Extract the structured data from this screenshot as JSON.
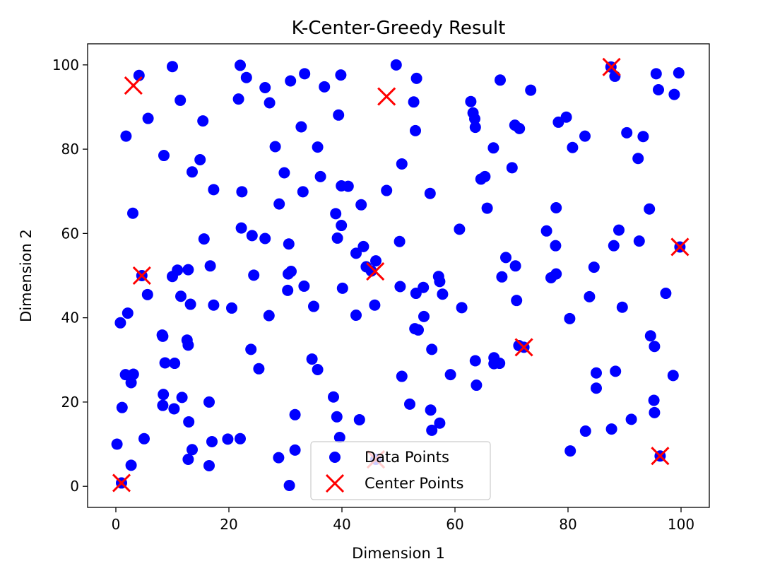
{
  "chart_data": {
    "type": "scatter",
    "title": "K-Center-Greedy Result",
    "xlabel": "Dimension 1",
    "ylabel": "Dimension 2",
    "xlim": [
      -5,
      105
    ],
    "ylim": [
      -5,
      105
    ],
    "xticks": [
      0,
      20,
      40,
      60,
      80,
      100
    ],
    "yticks": [
      0,
      20,
      40,
      60,
      80,
      100
    ],
    "xtick_labels": [
      "0",
      "20",
      "40",
      "60",
      "80",
      "100"
    ],
    "ytick_labels": [
      "0",
      "20",
      "40",
      "60",
      "80",
      "100"
    ],
    "grid": false,
    "legend_position": "bottom-center",
    "series": [
      {
        "name": "Data Points",
        "marker": "circle",
        "color": "#0000ff",
        "points": [
          [
            4.1,
            97.5
          ],
          [
            10.0,
            99.6
          ],
          [
            22.0,
            99.9
          ],
          [
            23.1,
            97.0
          ],
          [
            33.4,
            97.9
          ],
          [
            39.8,
            97.6
          ],
          [
            49.6,
            100.0
          ],
          [
            53.2,
            96.8
          ],
          [
            68.0,
            96.4
          ],
          [
            87.6,
            99.5
          ],
          [
            88.3,
            97.3
          ],
          [
            95.6,
            97.9
          ],
          [
            99.6,
            98.1
          ],
          [
            11.4,
            91.6
          ],
          [
            21.7,
            91.9
          ],
          [
            26.4,
            94.6
          ],
          [
            27.2,
            91.0
          ],
          [
            30.9,
            96.2
          ],
          [
            36.9,
            94.8
          ],
          [
            52.7,
            91.2
          ],
          [
            62.8,
            91.3
          ],
          [
            73.4,
            94.0
          ],
          [
            96.0,
            94.1
          ],
          [
            98.8,
            93.0
          ],
          [
            5.7,
            87.3
          ],
          [
            1.8,
            83.1
          ],
          [
            15.4,
            86.7
          ],
          [
            32.8,
            85.3
          ],
          [
            39.4,
            88.1
          ],
          [
            53.0,
            84.4
          ],
          [
            63.2,
            88.6
          ],
          [
            63.5,
            87.2
          ],
          [
            63.6,
            85.2
          ],
          [
            70.6,
            85.7
          ],
          [
            71.4,
            84.9
          ],
          [
            78.3,
            86.4
          ],
          [
            79.7,
            87.6
          ],
          [
            83.0,
            83.1
          ],
          [
            90.4,
            83.9
          ],
          [
            93.3,
            83.0
          ],
          [
            8.5,
            78.5
          ],
          [
            13.5,
            74.6
          ],
          [
            14.9,
            77.5
          ],
          [
            17.3,
            70.4
          ],
          [
            22.3,
            69.9
          ],
          [
            28.2,
            80.6
          ],
          [
            29.8,
            74.4
          ],
          [
            33.1,
            69.9
          ],
          [
            35.7,
            80.5
          ],
          [
            36.2,
            73.5
          ],
          [
            39.9,
            71.3
          ],
          [
            41.1,
            71.2
          ],
          [
            47.9,
            70.2
          ],
          [
            50.6,
            76.5
          ],
          [
            55.6,
            69.5
          ],
          [
            66.8,
            80.3
          ],
          [
            64.6,
            72.9
          ],
          [
            65.3,
            73.5
          ],
          [
            70.1,
            75.6
          ],
          [
            80.8,
            80.4
          ],
          [
            92.4,
            77.8
          ],
          [
            3.0,
            64.8
          ],
          [
            15.6,
            58.7
          ],
          [
            22.2,
            61.3
          ],
          [
            24.1,
            59.5
          ],
          [
            26.4,
            58.8
          ],
          [
            28.9,
            67.0
          ],
          [
            38.9,
            64.7
          ],
          [
            39.2,
            58.9
          ],
          [
            39.9,
            61.9
          ],
          [
            42.5,
            55.3
          ],
          [
            43.4,
            66.8
          ],
          [
            43.8,
            56.9
          ],
          [
            50.2,
            58.1
          ],
          [
            60.8,
            61.0
          ],
          [
            65.7,
            66.0
          ],
          [
            76.2,
            60.6
          ],
          [
            77.9,
            66.1
          ],
          [
            77.8,
            57.1
          ],
          [
            88.1,
            57.1
          ],
          [
            89.0,
            60.8
          ],
          [
            92.6,
            58.2
          ],
          [
            94.4,
            65.8
          ],
          [
            99.8,
            56.8
          ],
          [
            4.6,
            50.0
          ],
          [
            5.6,
            45.5
          ],
          [
            10.0,
            49.8
          ],
          [
            10.9,
            51.3
          ],
          [
            11.5,
            45.1
          ],
          [
            12.8,
            51.4
          ],
          [
            13.2,
            43.2
          ],
          [
            16.7,
            52.3
          ],
          [
            17.3,
            43.0
          ],
          [
            20.5,
            42.3
          ],
          [
            24.4,
            50.1
          ],
          [
            30.6,
            57.5
          ],
          [
            30.5,
            50.4
          ],
          [
            31.0,
            51.0
          ],
          [
            30.4,
            46.5
          ],
          [
            33.3,
            47.5
          ],
          [
            35.0,
            42.7
          ],
          [
            40.1,
            47.0
          ],
          [
            44.3,
            52.1
          ],
          [
            45.2,
            51.1
          ],
          [
            46.0,
            53.5
          ],
          [
            45.8,
            43.0
          ],
          [
            50.3,
            47.4
          ],
          [
            53.1,
            45.8
          ],
          [
            54.4,
            47.2
          ],
          [
            57.1,
            49.8
          ],
          [
            57.3,
            48.6
          ],
          [
            57.8,
            45.6
          ],
          [
            61.2,
            42.4
          ],
          [
            69.0,
            54.3
          ],
          [
            70.7,
            52.3
          ],
          [
            68.3,
            49.7
          ],
          [
            70.9,
            44.1
          ],
          [
            77.0,
            49.5
          ],
          [
            77.9,
            50.4
          ],
          [
            84.6,
            52.0
          ],
          [
            83.8,
            45.0
          ],
          [
            89.6,
            42.5
          ],
          [
            97.3,
            45.8
          ],
          [
            0.8,
            38.8
          ],
          [
            2.1,
            41.1
          ],
          [
            8.2,
            35.9
          ],
          [
            8.3,
            35.6
          ],
          [
            12.6,
            34.7
          ],
          [
            12.8,
            33.5
          ],
          [
            27.1,
            40.5
          ],
          [
            23.9,
            32.5
          ],
          [
            42.5,
            40.6
          ],
          [
            52.9,
            37.4
          ],
          [
            53.5,
            37.1
          ],
          [
            54.5,
            40.3
          ],
          [
            55.9,
            32.5
          ],
          [
            72.2,
            33.0
          ],
          [
            71.3,
            33.4
          ],
          [
            80.3,
            39.8
          ],
          [
            95.3,
            33.2
          ],
          [
            94.6,
            35.7
          ],
          [
            1.7,
            26.5
          ],
          [
            2.7,
            24.6
          ],
          [
            3.1,
            26.6
          ],
          [
            8.7,
            29.3
          ],
          [
            10.4,
            29.2
          ],
          [
            8.4,
            21.8
          ],
          [
            8.3,
            19.2
          ],
          [
            11.7,
            21.1
          ],
          [
            10.3,
            18.4
          ],
          [
            16.5,
            20.0
          ],
          [
            25.3,
            27.9
          ],
          [
            34.7,
            30.2
          ],
          [
            35.7,
            27.7
          ],
          [
            38.5,
            21.2
          ],
          [
            39.1,
            16.5
          ],
          [
            50.6,
            26.1
          ],
          [
            52.0,
            19.5
          ],
          [
            55.7,
            18.1
          ],
          [
            59.2,
            26.5
          ],
          [
            63.6,
            29.8
          ],
          [
            66.9,
            30.5
          ],
          [
            66.9,
            29.1
          ],
          [
            67.9,
            29.2
          ],
          [
            63.8,
            24.0
          ],
          [
            85.0,
            26.9
          ],
          [
            85.0,
            23.3
          ],
          [
            88.4,
            27.3
          ],
          [
            98.6,
            26.3
          ],
          [
            95.2,
            20.4
          ],
          [
            95.3,
            17.5
          ],
          [
            0.2,
            10.0
          ],
          [
            1.1,
            18.7
          ],
          [
            2.7,
            5.0
          ],
          [
            5.0,
            11.3
          ],
          [
            12.9,
            15.3
          ],
          [
            13.5,
            8.7
          ],
          [
            12.8,
            6.4
          ],
          [
            16.5,
            4.9
          ],
          [
            17.0,
            10.6
          ],
          [
            19.8,
            11.2
          ],
          [
            22.0,
            11.3
          ],
          [
            28.8,
            6.8
          ],
          [
            31.7,
            17.0
          ],
          [
            31.7,
            8.6
          ],
          [
            30.7,
            0.2
          ],
          [
            39.6,
            11.6
          ],
          [
            43.1,
            15.8
          ],
          [
            46.0,
            6.4
          ],
          [
            55.9,
            13.3
          ],
          [
            57.3,
            15.0
          ],
          [
            80.4,
            8.4
          ],
          [
            83.1,
            13.1
          ],
          [
            87.7,
            13.6
          ],
          [
            91.2,
            15.9
          ],
          [
            96.3,
            7.2
          ],
          [
            1.0,
            0.8
          ]
        ]
      },
      {
        "name": "Center Points",
        "marker": "x",
        "color": "#ff0000",
        "points": [
          [
            3.1,
            95.1
          ],
          [
            47.9,
            92.5
          ],
          [
            87.7,
            99.5
          ],
          [
            4.6,
            50.0
          ],
          [
            45.9,
            51.0
          ],
          [
            99.8,
            56.8
          ],
          [
            72.2,
            33.0
          ],
          [
            46.0,
            6.4
          ],
          [
            96.3,
            7.2
          ],
          [
            1.0,
            0.8
          ]
        ]
      }
    ]
  }
}
